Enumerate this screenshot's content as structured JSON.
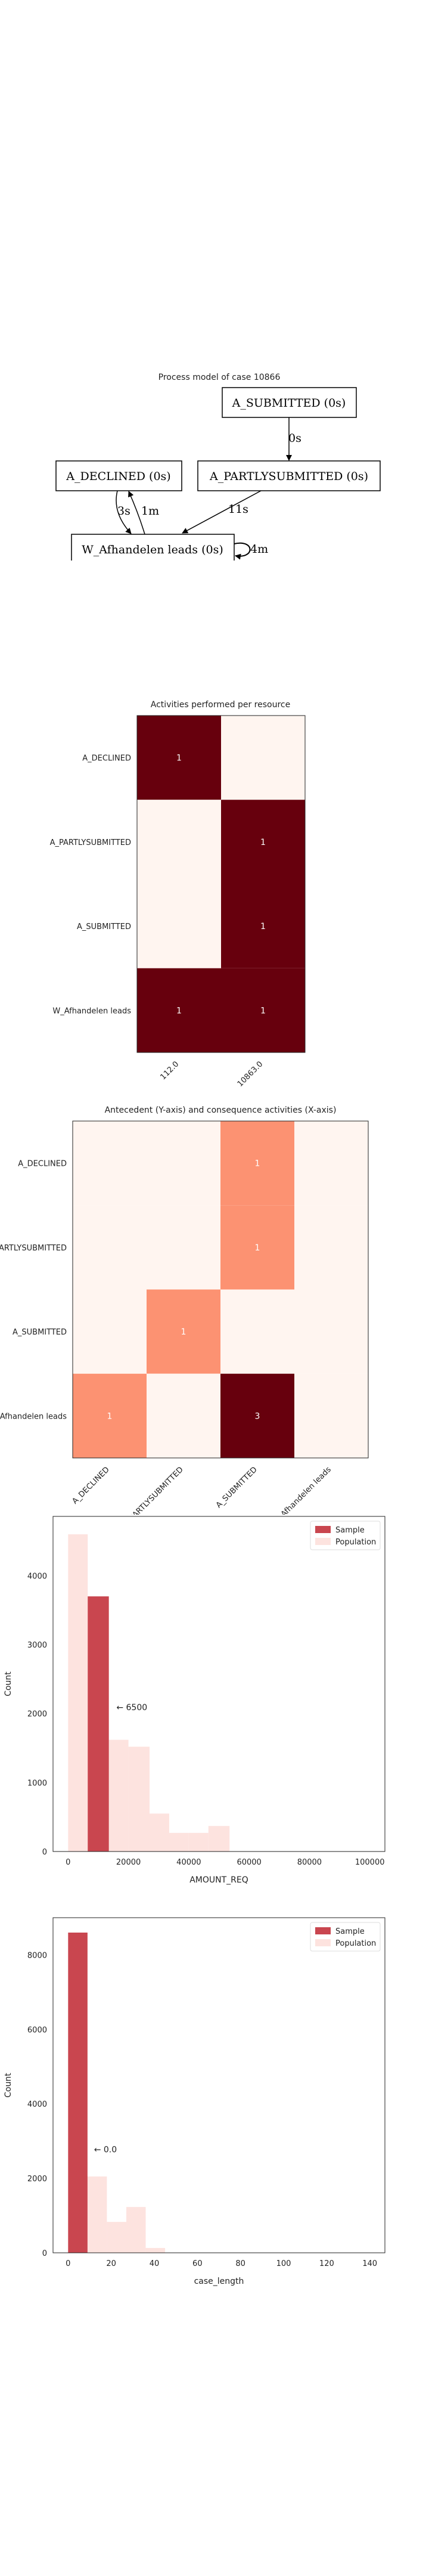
{
  "process_model": {
    "title": "Process model of case 10866",
    "nodes": {
      "submitted": "A_SUBMITTED (0s)",
      "declined": "A_DECLINED (0s)",
      "partly": "A_PARTLYSUBMITTED (0s)",
      "leads": "W_Afhandelen leads (0s)"
    },
    "edges": {
      "sub_partly": "0s",
      "decl_leads": "3s",
      "leads_decl": "1m",
      "partly_leads": "11s",
      "leads_self": "4m"
    }
  },
  "colors": {
    "dark": "#67000d",
    "medium": "#fc9272",
    "light": "#fff5f0",
    "sample": "#c9464f",
    "population": "#fde3df"
  },
  "chart_data": [
    {
      "type": "heatmap",
      "title": "Activities performed per resource",
      "y_categories": [
        "A_DECLINED",
        "A_PARTLYSUBMITTED",
        "A_SUBMITTED",
        "W_Afhandelen leads"
      ],
      "x_categories": [
        "112.0",
        "10863.0"
      ],
      "values": [
        [
          1,
          0
        ],
        [
          0,
          1
        ],
        [
          0,
          1
        ],
        [
          1,
          1
        ]
      ],
      "labels": [
        [
          "1",
          ""
        ],
        [
          "",
          "1"
        ],
        [
          "",
          "1"
        ],
        [
          "1",
          "1"
        ]
      ]
    },
    {
      "type": "heatmap",
      "title": "Antecedent (Y-axis) and consequence activities (X-axis)",
      "y_categories": [
        "A_DECLINED",
        "A_PARTLYSUBMITTED",
        "A_SUBMITTED",
        "W_Afhandelen leads"
      ],
      "x_categories": [
        "A_DECLINED",
        "A_PARTLYSUBMITTED",
        "A_SUBMITTED",
        "W_Afhandelen leads"
      ],
      "values": [
        [
          0,
          0,
          1,
          0
        ],
        [
          0,
          0,
          1,
          0
        ],
        [
          0,
          1,
          0,
          0
        ],
        [
          1,
          0,
          3,
          0
        ]
      ],
      "labels": [
        [
          "",
          "",
          "1",
          ""
        ],
        [
          "",
          "",
          "1",
          ""
        ],
        [
          "",
          "1",
          "",
          ""
        ],
        [
          "1",
          "",
          "3",
          ""
        ]
      ]
    },
    {
      "type": "bar",
      "xlabel": "AMOUNT_REQ",
      "ylabel": "Count",
      "xlim": [
        -5000,
        105000
      ],
      "ylim": [
        0,
        4860
      ],
      "xticks": [
        "0",
        "20000",
        "40000",
        "60000",
        "80000",
        "100000"
      ],
      "xtick_values": [
        0,
        20000,
        40000,
        60000,
        80000,
        100000
      ],
      "yticks": [
        "0",
        "1000",
        "2000",
        "3000",
        "4000"
      ],
      "ytick_values": [
        0,
        1000,
        2000,
        3000,
        4000
      ],
      "series": [
        {
          "name": "Population",
          "bins": [
            [
              0,
              6500,
              4600
            ],
            [
              13500,
              20000,
              1620
            ],
            [
              20000,
              27000,
              1520
            ],
            [
              27000,
              33500,
              550
            ],
            [
              33500,
              40000,
              270
            ],
            [
              40000,
              46500,
              270
            ],
            [
              46500,
              53500,
              370
            ]
          ]
        },
        {
          "name": "Sample",
          "bins": [
            [
              6500,
              13500,
              3700
            ]
          ]
        }
      ],
      "annotation": {
        "text": "← 6500",
        "x": 16000,
        "y": 2050
      },
      "legend": "top-right"
    },
    {
      "type": "bar",
      "xlabel": "case_length",
      "ylabel": "Count",
      "xlim": [
        -7,
        147
      ],
      "ylim": [
        0,
        9000
      ],
      "xticks": [
        "0",
        "20",
        "40",
        "60",
        "80",
        "100",
        "120",
        "140"
      ],
      "xtick_values": [
        0,
        20,
        40,
        60,
        80,
        100,
        120,
        140
      ],
      "yticks": [
        "0",
        "2000",
        "4000",
        "6000",
        "8000"
      ],
      "ytick_values": [
        0,
        2000,
        4000,
        6000,
        8000
      ],
      "series": [
        {
          "name": "Population",
          "bins": [
            [
              9,
              18,
              2050
            ],
            [
              18,
              27,
              830
            ],
            [
              27,
              36,
              1230
            ],
            [
              36,
              45,
              130
            ]
          ]
        },
        {
          "name": "Sample",
          "bins": [
            [
              0,
              9,
              8600
            ]
          ]
        }
      ],
      "annotation": {
        "text": "← 0.0",
        "x": 12,
        "y": 2700
      },
      "legend": "top-right"
    }
  ]
}
